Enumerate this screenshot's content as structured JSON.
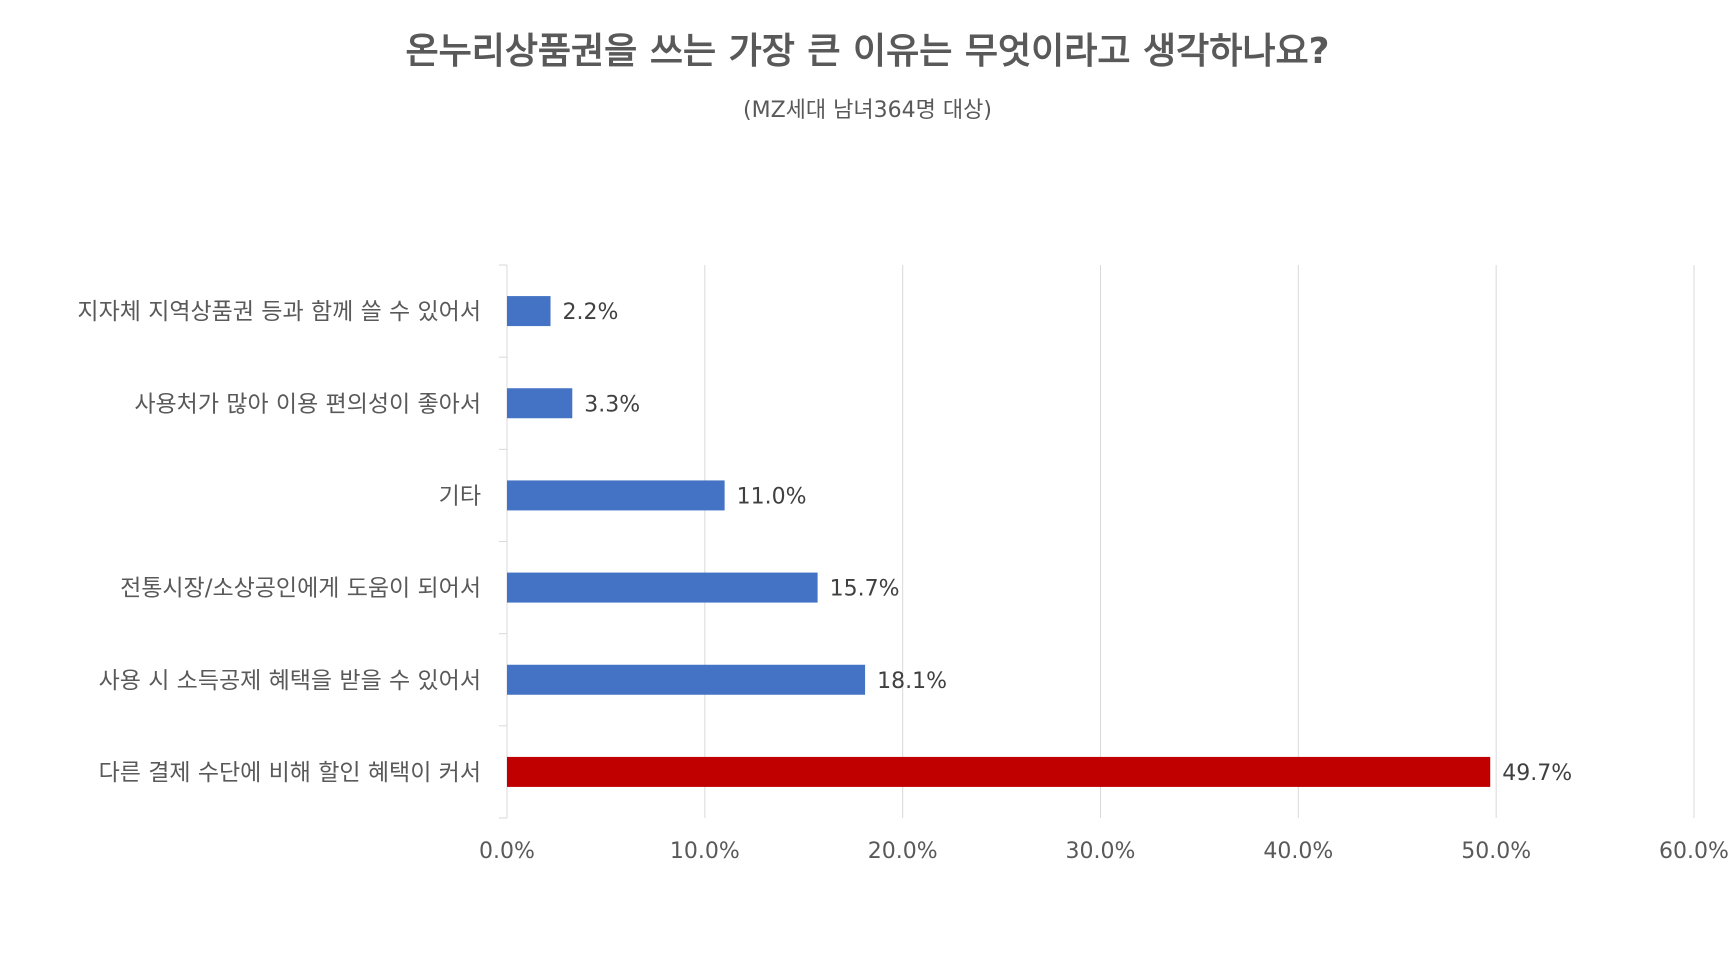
{
  "chart_data": {
    "type": "bar",
    "orientation": "horizontal",
    "title": "온누리상품권을 쓰는 가장 큰 이유는 무엇이라고 생각하나요?",
    "subtitle": "(MZ세대 남녀364명 대상)",
    "categories": [
      "지자체 지역상품권 등과 함께 쓸 수 있어서",
      "사용처가 많아 이용 편의성이 좋아서",
      "기타",
      "전통시장/소상공인에게 도움이 되어서",
      "사용 시 소득공제 혜택을 받을 수 있어서",
      "다른 결제 수단에 비해 할인 혜택이 커서"
    ],
    "values": [
      2.2,
      3.3,
      11.0,
      15.7,
      18.1,
      49.7
    ],
    "value_labels": [
      "2.2%",
      "3.3%",
      "11.0%",
      "15.7%",
      "18.1%",
      "49.7%"
    ],
    "colors": [
      "#4472c4",
      "#4472c4",
      "#4472c4",
      "#4472c4",
      "#4472c4",
      "#c00000"
    ],
    "xlim": [
      0,
      60
    ],
    "x_ticks": [
      0,
      10,
      20,
      30,
      40,
      50,
      60
    ],
    "x_tick_labels": [
      "0.0%",
      "10.0%",
      "20.0%",
      "30.0%",
      "40.0%",
      "50.0%",
      "60.0%"
    ],
    "grid": true,
    "legend": "none"
  }
}
